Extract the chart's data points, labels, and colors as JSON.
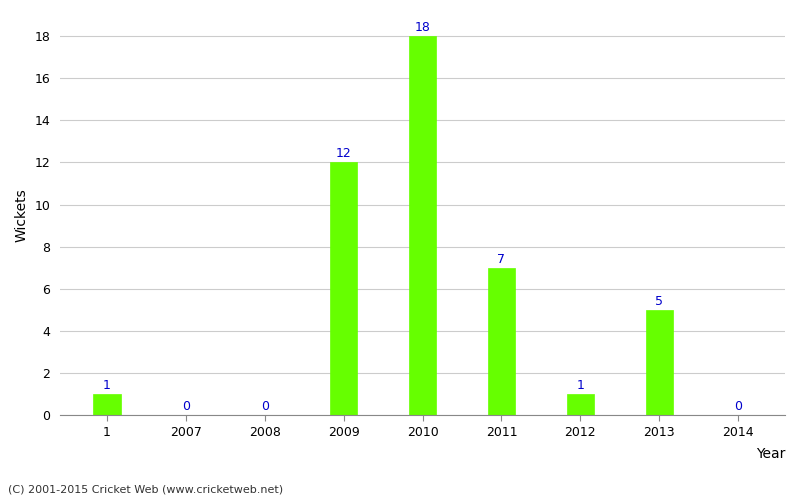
{
  "categories": [
    "1",
    "2007",
    "2008",
    "2009",
    "2010",
    "2011",
    "2012",
    "2013",
    "2014"
  ],
  "values": [
    1,
    0,
    0,
    12,
    18,
    7,
    1,
    5,
    0
  ],
  "bar_color": "#66ff00",
  "bar_edge_color": "#66ff00",
  "label_color": "#0000cc",
  "xlabel": "Year",
  "ylabel": "Wickets",
  "ylim": [
    0,
    19
  ],
  "yticks": [
    0,
    2,
    4,
    6,
    8,
    10,
    12,
    14,
    16,
    18
  ],
  "grid_color": "#cccccc",
  "background_color": "#ffffff",
  "footer_text": "(C) 2001-2015 Cricket Web (www.cricketweb.net)",
  "label_fontsize": 9,
  "axis_label_fontsize": 10
}
